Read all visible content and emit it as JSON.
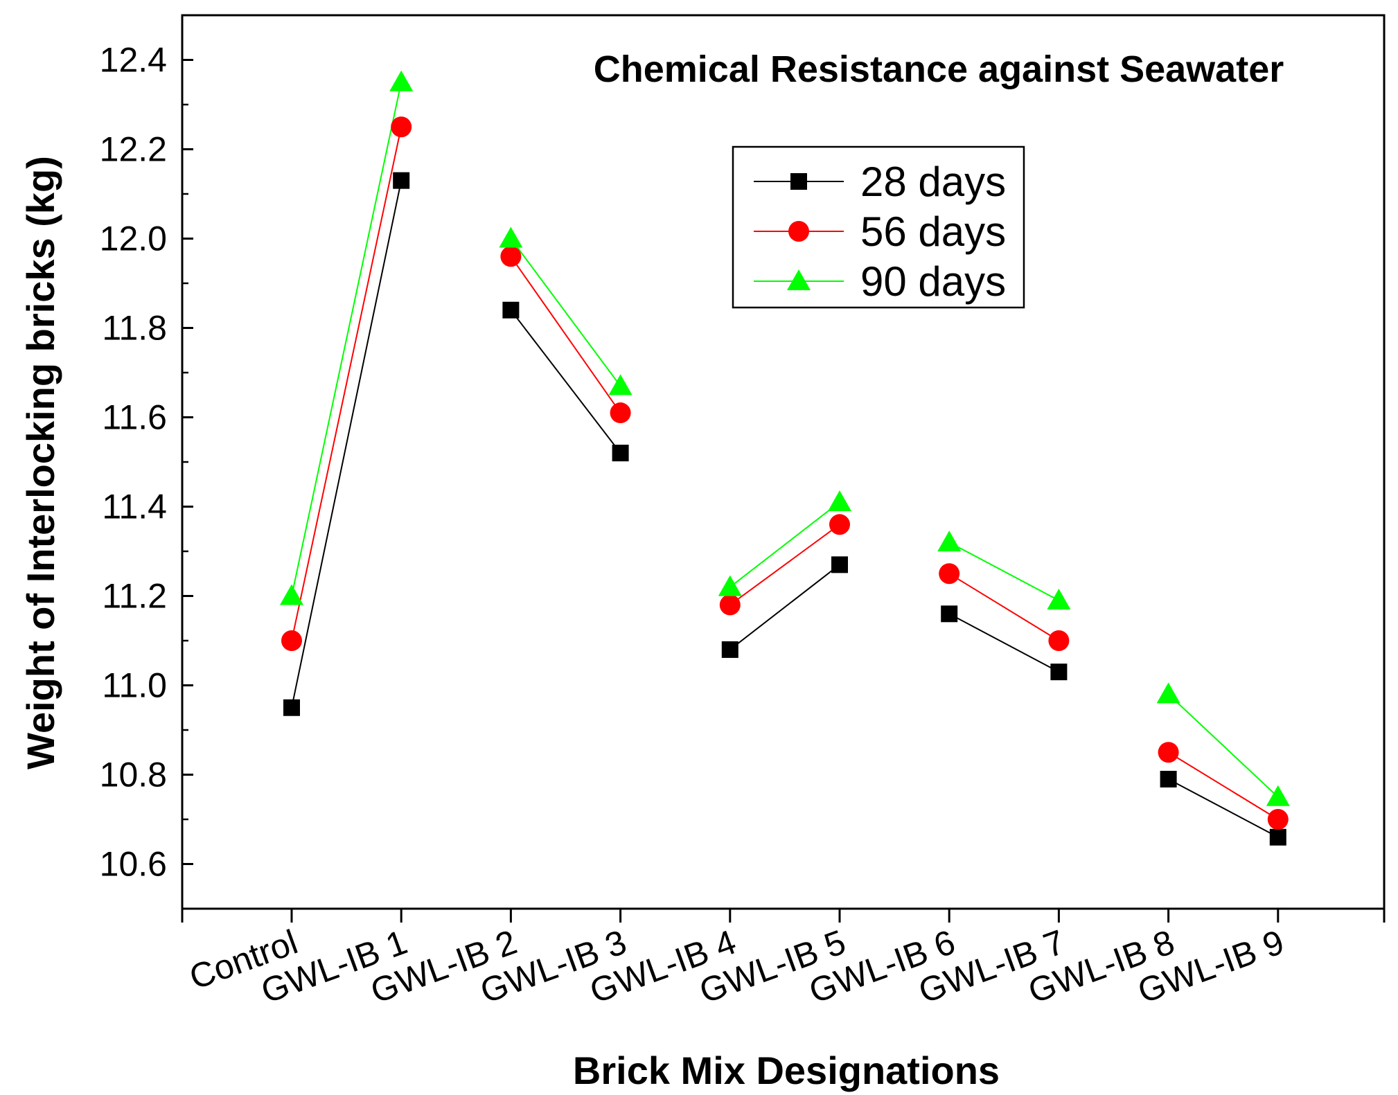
{
  "chart_data": {
    "type": "line",
    "title": "Chemical Resistance against Seawater",
    "xlabel": "Brick Mix Designations",
    "ylabel": "Weight of Interlocking bricks (kg)",
    "categories": [
      "Control",
      "GWL-IB 1",
      "GWL-IB 2",
      "GWL-IB 3",
      "GWL-IB 4",
      "GWL-IB 5",
      "GWL-IB 6",
      "GWL-IB 7",
      "GWL-IB 8",
      "GWL-IB 9"
    ],
    "ylim": [
      10.5,
      12.5
    ],
    "yticks": [
      "10.6",
      "10.8",
      "11.0",
      "11.2",
      "11.4",
      "11.6",
      "11.8",
      "12.0",
      "12.2",
      "12.4"
    ],
    "grid": false,
    "legend_position": "upper-right",
    "line_segments": [
      [
        0,
        1
      ],
      [
        2,
        3
      ],
      [
        4,
        5
      ],
      [
        6,
        7
      ],
      [
        8,
        9
      ]
    ],
    "series": [
      {
        "name": "28 days",
        "color": "#000000",
        "marker": "square",
        "values": [
          10.95,
          12.13,
          11.84,
          11.52,
          11.08,
          11.27,
          11.16,
          11.03,
          10.79,
          10.66
        ]
      },
      {
        "name": "56 days",
        "color": "#ff0000",
        "marker": "circle",
        "values": [
          11.1,
          12.25,
          11.96,
          11.61,
          11.18,
          11.36,
          11.25,
          11.1,
          10.85,
          10.7
        ]
      },
      {
        "name": "90 days",
        "color": "#00ff00",
        "marker": "triangle",
        "values": [
          11.2,
          12.35,
          12.0,
          11.67,
          11.22,
          11.41,
          11.32,
          11.19,
          10.98,
          10.75
        ]
      }
    ]
  }
}
